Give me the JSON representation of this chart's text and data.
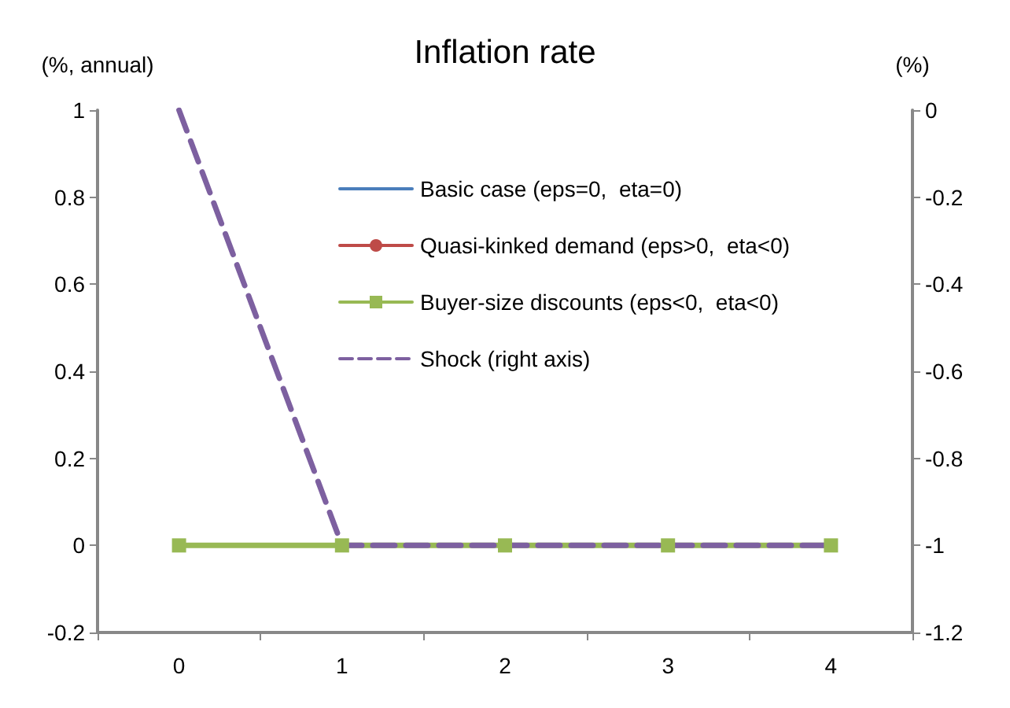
{
  "chart_data": {
    "type": "line",
    "title": "Inflation rate",
    "ylabel": "(%, annual)",
    "y2label": "(%)",
    "categories": [
      "0",
      "1",
      "2",
      "3",
      "4"
    ],
    "series": [
      {
        "name": "Basic case (eps=0,  eta=0)",
        "color": "#4a7ebb",
        "values": [
          null,
          null,
          null,
          null,
          null
        ],
        "marker": "none",
        "line_style": "solid"
      },
      {
        "name": "Quasi-kinked demand (eps>0,  eta<0)",
        "color": "#be4b48",
        "values": [
          null,
          null,
          null,
          null,
          null
        ],
        "marker": "circle",
        "line_style": "solid"
      },
      {
        "name": "Buyer-size discounts (eps<0,  eta<0)",
        "color": "#98b954",
        "values": [
          0,
          0,
          0,
          0,
          0
        ],
        "marker": "square",
        "line_style": "solid"
      },
      {
        "name": "Shock (right axis)",
        "color": "#7d60a0",
        "values": [
          0,
          -1,
          -1,
          -1,
          -1
        ],
        "marker": "none",
        "line_style": "dashed",
        "axis": "y2"
      }
    ],
    "ylim": [
      -0.2,
      1
    ],
    "yticks": [
      -0.2,
      0,
      0.2,
      0.4,
      0.6,
      0.8,
      1
    ],
    "y2lim": [
      -1.2,
      0
    ],
    "y2ticks": [
      -1.2,
      -1,
      -0.8,
      -0.6,
      -0.4,
      -0.2,
      0
    ],
    "grid": false,
    "legend": "right"
  }
}
